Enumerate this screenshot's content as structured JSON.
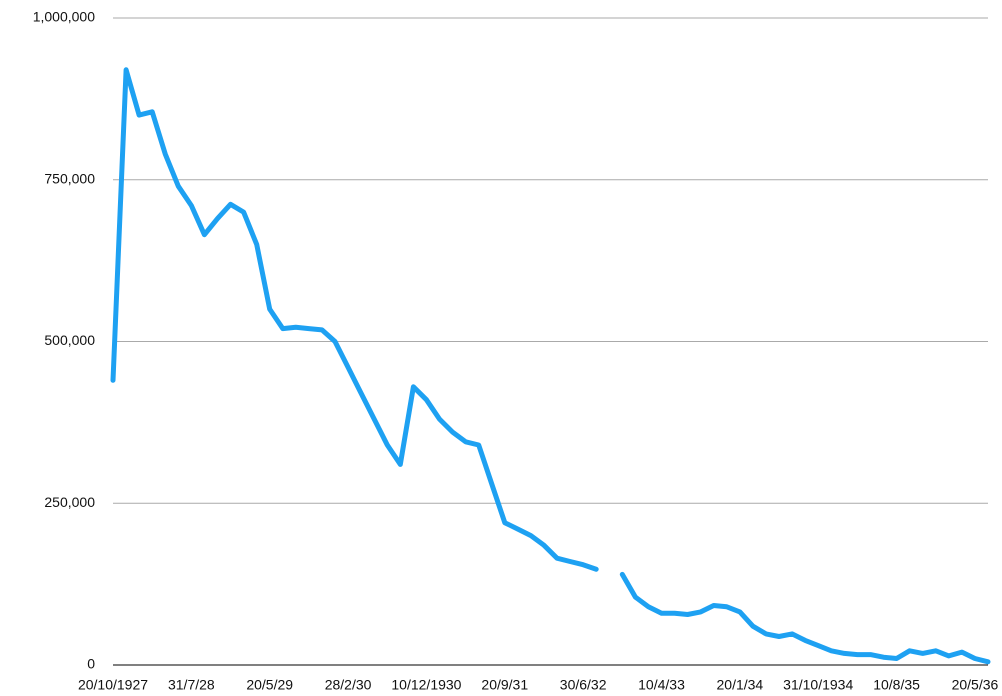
{
  "chart_data": {
    "type": "line",
    "categories": [
      "20/10/1927",
      null,
      null,
      null,
      null,
      null,
      "31/7/28",
      null,
      null,
      null,
      null,
      null,
      "20/5/29",
      null,
      null,
      null,
      null,
      null,
      "28/2/30",
      null,
      null,
      null,
      null,
      null,
      "10/12/1930",
      null,
      null,
      null,
      null,
      null,
      "20/9/31",
      null,
      null,
      null,
      null,
      null,
      "30/6/32",
      null,
      null,
      null,
      null,
      null,
      "10/4/33",
      null,
      null,
      null,
      null,
      null,
      "20/1/34",
      null,
      null,
      null,
      null,
      null,
      "31/10/1934",
      null,
      null,
      null,
      null,
      null,
      "10/8/35",
      null,
      null,
      null,
      null,
      null,
      "20/5/36",
      null
    ],
    "values": [
      440000,
      920000,
      850000,
      855000,
      790000,
      740000,
      710000,
      665000,
      690000,
      712000,
      700000,
      650000,
      550000,
      520000,
      522000,
      520000,
      518000,
      500000,
      460000,
      420000,
      380000,
      340000,
      310000,
      430000,
      410000,
      380000,
      360000,
      345000,
      340000,
      280000,
      220000,
      210000,
      200000,
      185000,
      165000,
      160000,
      155000,
      148000,
      null,
      140000,
      105000,
      90000,
      80000,
      80000,
      78000,
      82000,
      92000,
      90000,
      82000,
      60000,
      48000,
      44000,
      48000,
      38000,
      30000,
      22000,
      18000,
      16000,
      16000,
      12000,
      10000,
      22000,
      18000,
      22000,
      14000,
      20000,
      10000,
      5000
    ],
    "color": "#1ea1f2",
    "ylim": [
      0,
      1000000
    ],
    "yticks": [
      0,
      {
        "value": 250000,
        "label": "250,000"
      },
      {
        "value": 500000,
        "label": "500,000"
      },
      {
        "value": 750000,
        "label": "750,000"
      },
      {
        "value": 1000000,
        "label": "1,000,000"
      }
    ],
    "grid": true
  }
}
